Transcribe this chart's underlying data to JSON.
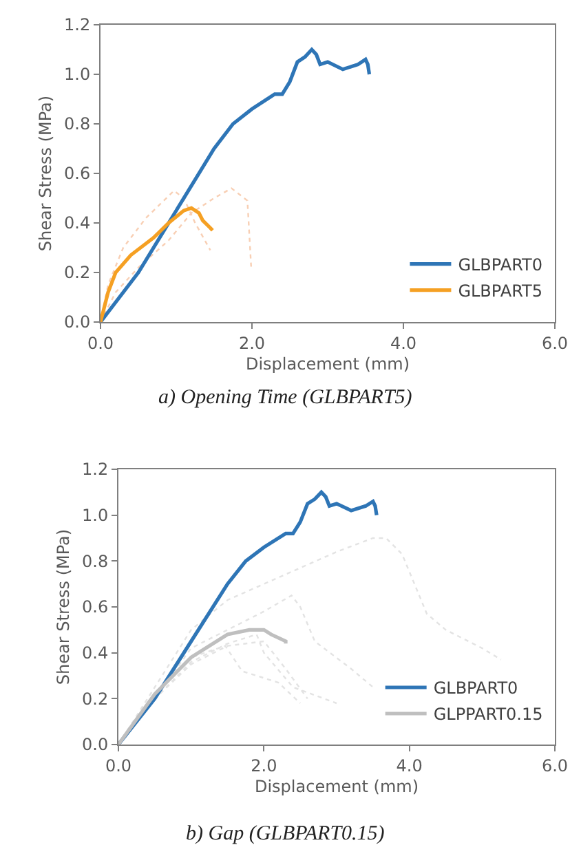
{
  "chart_data": [
    {
      "type": "line",
      "xlabel": "Displacement (mm)",
      "ylabel": "Shear Stress (MPa)",
      "xlim": [
        0,
        6
      ],
      "xticks": [
        {
          "value": 0,
          "label": "0.0"
        },
        {
          "value": 2,
          "label": "2.0"
        },
        {
          "value": 4,
          "label": "4.0"
        },
        {
          "value": 6,
          "label": "6.0"
        }
      ],
      "ylim": [
        0,
        1.2
      ],
      "yticks": [
        {
          "value": 0,
          "label": "0.0"
        },
        {
          "value": 0.2,
          "label": "0.2"
        },
        {
          "value": 0.4,
          "label": "0.4"
        },
        {
          "value": 0.6,
          "label": "0.6"
        },
        {
          "value": 0.8,
          "label": "0.8"
        },
        {
          "value": 1,
          "label": "1.0"
        },
        {
          "value": 1.2,
          "label": "1.2"
        }
      ],
      "grid": false,
      "legend": "bottom right",
      "annotations": [
        "a) Opening Time (GLBPART5)"
      ],
      "series": [
        {
          "color": "#f8cfb4",
          "line_style": "dotted",
          "x": [
            0,
            0.1,
            0.3,
            0.6,
            0.97,
            1.1,
            1.25,
            1.45
          ],
          "values": [
            0,
            0.15,
            0.3,
            0.42,
            0.53,
            0.5,
            0.4,
            0.29
          ]
        },
        {
          "color": "#f8cfb4",
          "line_style": "dotted",
          "x": [
            0,
            0.2,
            0.5,
            0.9,
            1.2,
            1.5,
            1.73,
            1.94,
            1.99
          ],
          "values": [
            0,
            0.12,
            0.22,
            0.33,
            0.44,
            0.5,
            0.54,
            0.49,
            0.22
          ]
        },
        {
          "name": "GLBPART0",
          "color": "#2e75b6",
          "x": [
            0,
            0.5,
            1,
            1.5,
            1.75,
            2,
            2.3,
            2.4,
            2.5,
            2.6,
            2.7,
            2.79,
            2.85,
            2.9,
            3,
            3.2,
            3.4,
            3.5,
            3.53,
            3.55
          ],
          "values": [
            0,
            0.2,
            0.45,
            0.7,
            0.8,
            0.86,
            0.92,
            0.92,
            0.97,
            1.05,
            1.07,
            1.1,
            1.08,
            1.04,
            1.05,
            1.02,
            1.04,
            1.06,
            1.04,
            1
          ]
        },
        {
          "name": "GLBPART5",
          "color": "#f5a023",
          "x": [
            0,
            0.1,
            0.2,
            0.4,
            0.7,
            0.9,
            1.1,
            1.2,
            1.3,
            1.35,
            1.45,
            1.48
          ],
          "values": [
            0,
            0.12,
            0.2,
            0.27,
            0.34,
            0.4,
            0.45,
            0.46,
            0.44,
            0.41,
            0.38,
            0.37
          ]
        }
      ]
    },
    {
      "type": "line",
      "xlabel": "Displacement (mm)",
      "ylabel": "Shear Stress (MPa)",
      "xlim": [
        0,
        6
      ],
      "xticks": [
        {
          "value": 0,
          "label": "0.0"
        },
        {
          "value": 2,
          "label": "2.0"
        },
        {
          "value": 4,
          "label": "4.0"
        },
        {
          "value": 6,
          "label": "6.0"
        }
      ],
      "ylim": [
        0,
        1.2
      ],
      "yticks": [
        {
          "value": 0,
          "label": "0.0"
        },
        {
          "value": 0.2,
          "label": "0.2"
        },
        {
          "value": 0.4,
          "label": "0.4"
        },
        {
          "value": 0.6,
          "label": "0.6"
        },
        {
          "value": 0.8,
          "label": "0.8"
        },
        {
          "value": 1,
          "label": "1.0"
        },
        {
          "value": 1.2,
          "label": "1.2"
        }
      ],
      "grid": false,
      "legend": "bottom right",
      "annotations": [
        "b) Gap (GLBPART0.15)"
      ],
      "series": [
        {
          "color": "#e3e3e3",
          "line_style": "dotted",
          "x": [
            0,
            0.5,
            1,
            1.5,
            2,
            2.5,
            3,
            3.5,
            3.68,
            3.9,
            4.24,
            4.5,
            5,
            5.26
          ],
          "values": [
            0,
            0.25,
            0.5,
            0.63,
            0.7,
            0.77,
            0.84,
            0.9,
            0.9,
            0.83,
            0.57,
            0.5,
            0.42,
            0.37
          ]
        },
        {
          "color": "#e3e3e3",
          "line_style": "dotted",
          "x": [
            0,
            0.5,
            1,
            1.5,
            2,
            2.38,
            2.5,
            2.7,
            3.2,
            3.5
          ],
          "values": [
            0,
            0.2,
            0.42,
            0.5,
            0.58,
            0.65,
            0.6,
            0.45,
            0.33,
            0.25
          ]
        },
        {
          "color": "#e3e3e3",
          "line_style": "dotted",
          "x": [
            0,
            0.5,
            1,
            1.47,
            1.7,
            2.2,
            2.5
          ],
          "values": [
            0,
            0.22,
            0.38,
            0.43,
            0.32,
            0.27,
            0.18
          ]
        },
        {
          "color": "#e3e3e3",
          "line_style": "dotted",
          "x": [
            0,
            0.5,
            1,
            1.5,
            1.9,
            2,
            2.4,
            3
          ],
          "values": [
            0,
            0.2,
            0.36,
            0.44,
            0.48,
            0.4,
            0.25,
            0.18
          ]
        },
        {
          "color": "#e3e3e3",
          "line_style": "dotted",
          "x": [
            0,
            0.5,
            1,
            1.5,
            2,
            2.3,
            2.6
          ],
          "values": [
            0,
            0.2,
            0.35,
            0.43,
            0.45,
            0.33,
            0.2
          ]
        },
        {
          "name": "GLBPART0",
          "color": "#2e75b6",
          "x": [
            0,
            0.5,
            1,
            1.5,
            1.75,
            2,
            2.3,
            2.4,
            2.5,
            2.6,
            2.7,
            2.79,
            2.85,
            2.9,
            3,
            3.2,
            3.4,
            3.5,
            3.53,
            3.55
          ],
          "values": [
            0,
            0.2,
            0.45,
            0.7,
            0.8,
            0.86,
            0.92,
            0.92,
            0.97,
            1.05,
            1.07,
            1.1,
            1.08,
            1.04,
            1.05,
            1.02,
            1.04,
            1.06,
            1.04,
            1
          ]
        },
        {
          "name": "GLPPART0.15",
          "color": "#bfbfbf",
          "x": [
            0,
            0.5,
            1,
            1.5,
            1.8,
            2,
            2.1,
            2.3,
            2.3
          ],
          "values": [
            0,
            0.22,
            0.38,
            0.48,
            0.5,
            0.5,
            0.48,
            0.45,
            0.44
          ]
        }
      ]
    }
  ]
}
